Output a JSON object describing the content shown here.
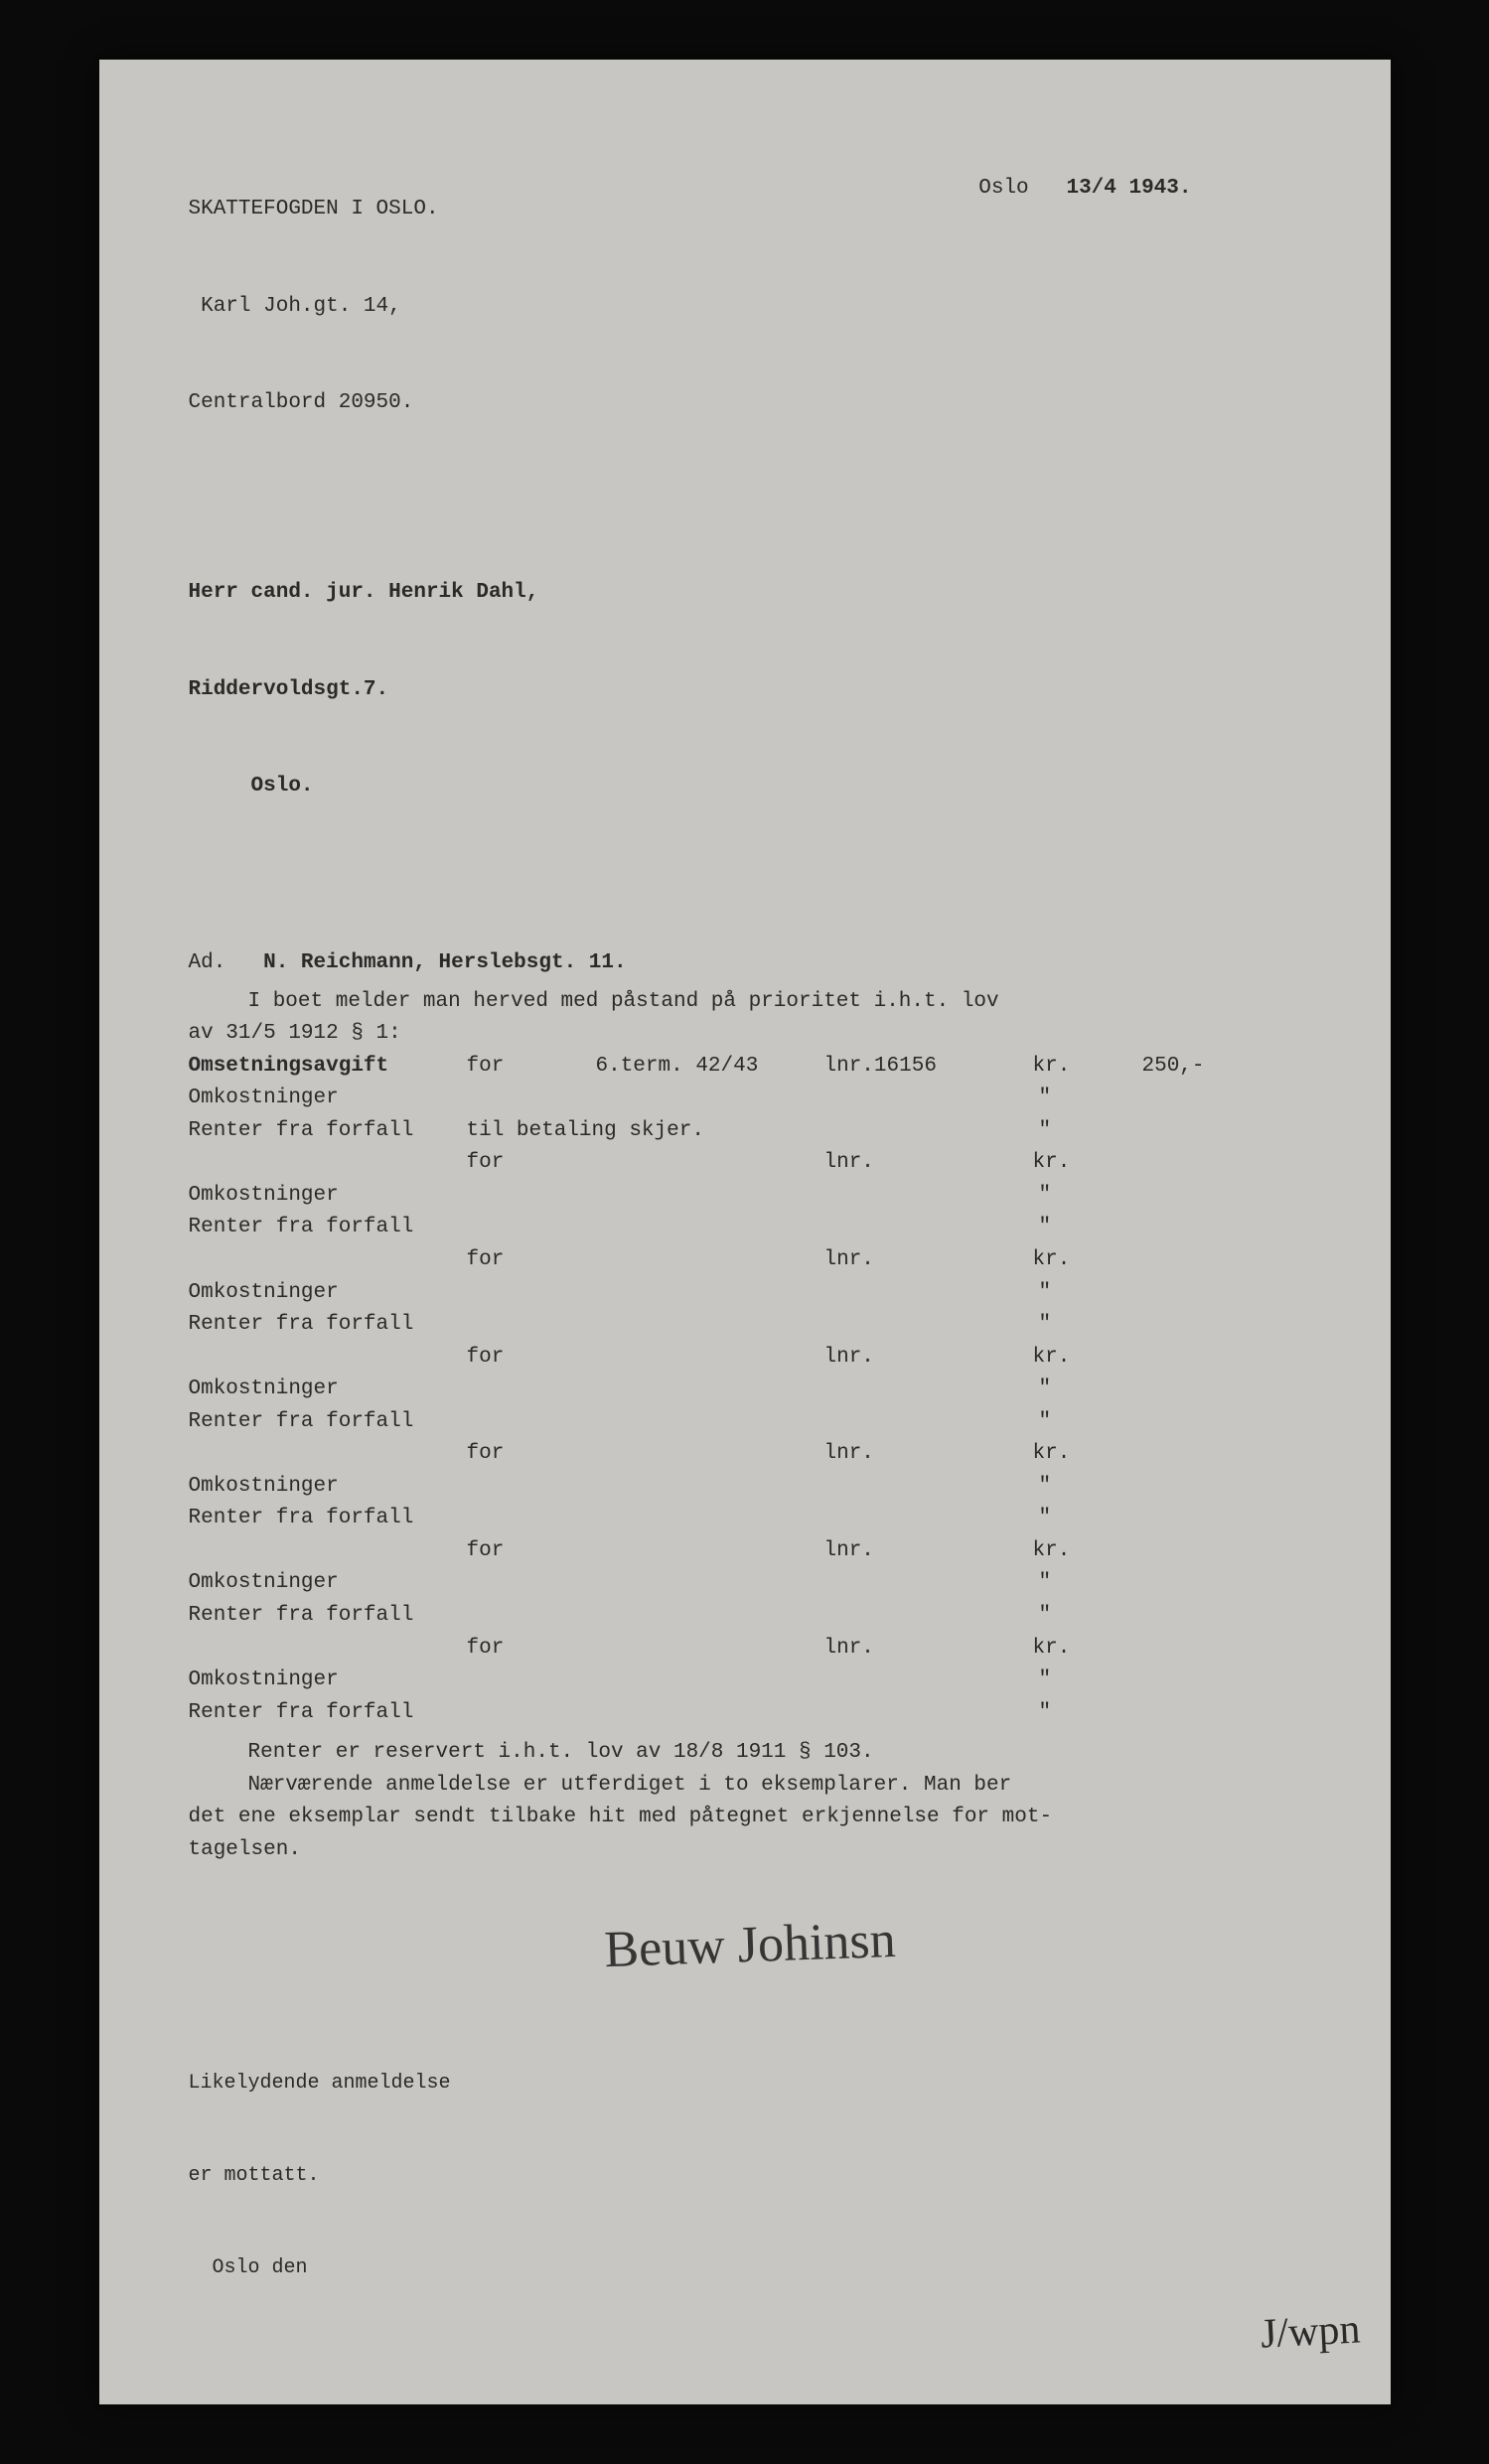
{
  "sender": {
    "line1": "SKATTEFOGDEN I OSLO.",
    "line2": " Karl Joh.gt. 14,",
    "line3": "Centralbord 20950."
  },
  "date": {
    "city": "Oslo",
    "value": "13/4 1943."
  },
  "recipient": {
    "line1": "Herr cand. jur. Henrik Dahl,",
    "line2": "Riddervoldsgt.7.",
    "line3": "     Oslo."
  },
  "subject": {
    "prefix": "Ad.",
    "name": "N. Reichmann, Herslebsgt. 11."
  },
  "intro": "I boet melder man herved med påstand på prioritet i.h.t. lov",
  "law": "av 31/5 1912 § 1:",
  "labels": {
    "omsetning": "Omsetningsavgift",
    "omkost": "Omkostninger",
    "renter_forfall": "Renter fra forfall",
    "renter_betaling": "til betaling skjer.",
    "for": "for",
    "lnr": "lnr.",
    "lnr_dot": "lnr.",
    "kr": "kr.",
    "ditto": "\""
  },
  "first": {
    "term": "6.term. 42/43",
    "lnr": "lnr.16156",
    "amount": "250,-"
  },
  "notes": {
    "l1": "Renter er reservert i.h.t. lov av 18/8 1911 § 103.",
    "l2": "Nærværende anmeldelse er utferdiget i to eksemplarer. Man ber",
    "l3": "det ene eksemplar sendt tilbake hit med påtegnet erkjennelse for mot-",
    "l4": "tagelsen."
  },
  "signature": "Beuw Johinsn",
  "receipt": {
    "l1": "Likelydende anmeldelse",
    "l2": "er mottatt.",
    "l3": "  Oslo den"
  },
  "corner_sig": "J/wpn"
}
